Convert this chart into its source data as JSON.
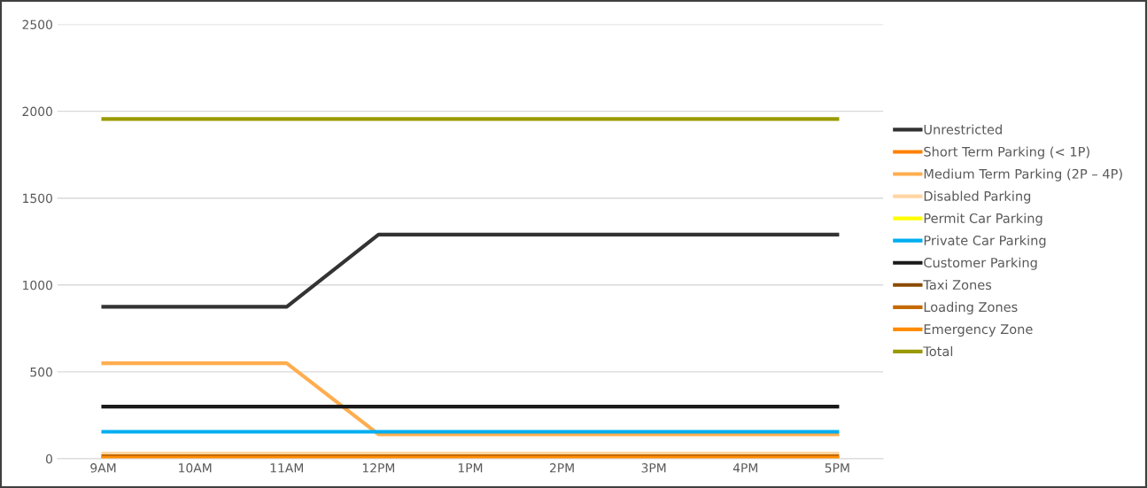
{
  "chart_data": {
    "type": "line",
    "categories": [
      "9AM",
      "10AM",
      "11AM",
      "12PM",
      "1PM",
      "2PM",
      "3PM",
      "4PM",
      "5PM"
    ],
    "ylim": [
      0,
      2500
    ],
    "yticks": [
      0,
      500,
      1000,
      1500,
      2000,
      2500
    ],
    "grid": "y",
    "legend": "right",
    "line_style": "solid",
    "marker": "none",
    "series": [
      {
        "name": "Unrestricted",
        "color": "#333333",
        "values": [
          875,
          875,
          875,
          1290,
          1290,
          1290,
          1290,
          1290,
          1290
        ]
      },
      {
        "name": "Short Term Parking (< 1P)",
        "color": "#ff8000",
        "values": [
          null,
          null,
          null,
          null,
          null,
          null,
          null,
          null,
          null
        ]
      },
      {
        "name": "Medium Term Parking (2P – 4P)",
        "color": "#ffad4f",
        "values": [
          550,
          550,
          550,
          140,
          140,
          140,
          140,
          140,
          140
        ]
      },
      {
        "name": "Disabled Parking",
        "color": "#ffd6a3",
        "values": [
          30,
          30,
          30,
          30,
          30,
          30,
          30,
          30,
          30
        ]
      },
      {
        "name": "Permit Car Parking",
        "color": "#ffff00",
        "values": [
          null,
          null,
          null,
          null,
          null,
          null,
          null,
          null,
          null
        ]
      },
      {
        "name": "Private Car Parking",
        "color": "#00aeef",
        "values": [
          155,
          155,
          155,
          155,
          155,
          155,
          155,
          155,
          155
        ]
      },
      {
        "name": "Customer Parking",
        "color": "#1a1a1a",
        "values": [
          300,
          300,
          300,
          300,
          300,
          300,
          300,
          300,
          300
        ]
      },
      {
        "name": "Taxi Zones",
        "color": "#8b4a00",
        "values": [
          null,
          null,
          null,
          null,
          null,
          null,
          null,
          null,
          null
        ]
      },
      {
        "name": "Loading Zones",
        "color": "#c46a00",
        "values": [
          15,
          15,
          15,
          15,
          15,
          15,
          15,
          15,
          15
        ]
      },
      {
        "name": "Emergency Zone",
        "color": "#ff8c00",
        "values": [
          5,
          5,
          5,
          5,
          5,
          5,
          5,
          5,
          5
        ]
      },
      {
        "name": "Total",
        "color": "#9a9a00",
        "values": [
          1955,
          1955,
          1955,
          1955,
          1955,
          1955,
          1955,
          1955,
          1955
        ]
      }
    ]
  }
}
